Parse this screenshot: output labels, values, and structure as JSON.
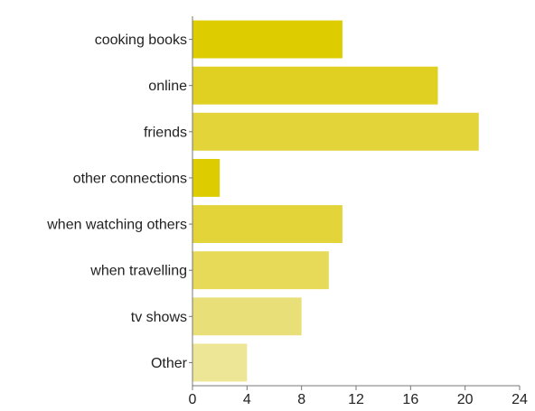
{
  "chart_data": {
    "type": "bar",
    "orientation": "horizontal",
    "title": "",
    "xlabel": "",
    "ylabel": "",
    "categories": [
      "cooking books",
      "online",
      "friends",
      "other connections",
      "when watching others",
      "when travelling",
      "tv shows",
      "Other"
    ],
    "values": [
      11,
      18,
      21,
      2,
      11,
      10,
      8,
      4
    ],
    "colors": [
      "#dccc00",
      "#e0d022",
      "#e3d43a",
      "#dccc00",
      "#e3d43a",
      "#e6da58",
      "#e9df78",
      "#ede697"
    ],
    "xlim": [
      0,
      24
    ],
    "xticks": [
      "0",
      "4",
      "8",
      "12",
      "16",
      "20",
      "24"
    ],
    "grid": false,
    "legend": "none"
  }
}
